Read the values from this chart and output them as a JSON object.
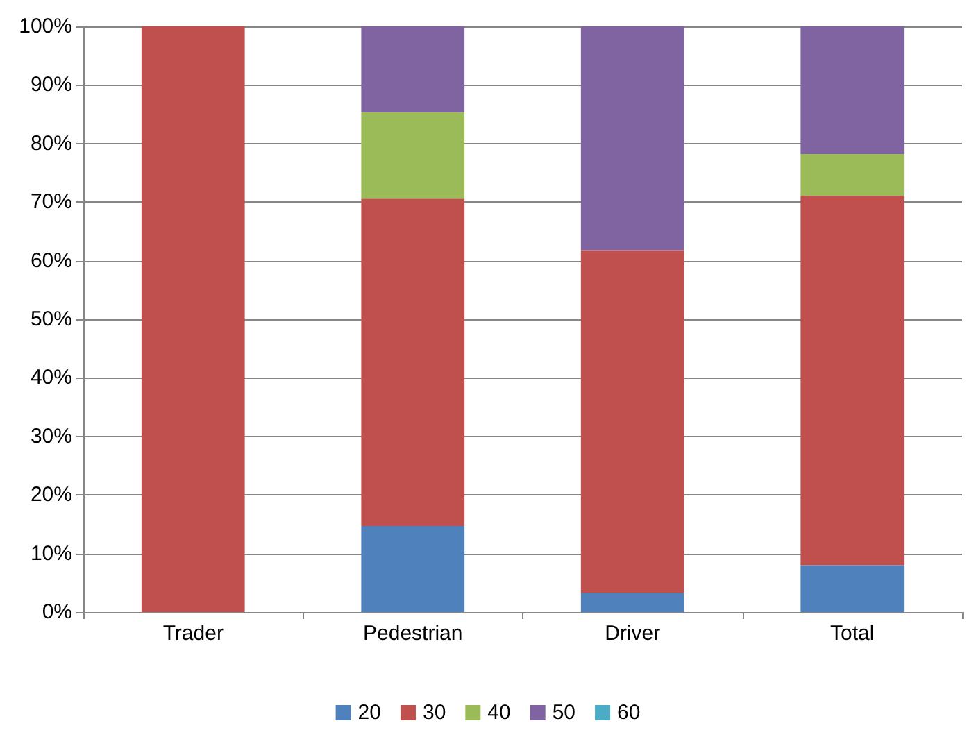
{
  "chart_data": {
    "type": "bar",
    "stacked": true,
    "categories": [
      "Trader",
      "Pedestrian",
      "Driver",
      "Total"
    ],
    "series": [
      {
        "name": "20",
        "color": "#4f81bd",
        "values": [
          0,
          14.7,
          3.3,
          8.0
        ]
      },
      {
        "name": "30",
        "color": "#c0504d",
        "values": [
          100,
          55.9,
          58.5,
          63.1
        ]
      },
      {
        "name": "40",
        "color": "#9bbb59",
        "values": [
          0,
          14.7,
          0,
          7.1
        ]
      },
      {
        "name": "50",
        "color": "#8064a2",
        "values": [
          0,
          14.7,
          38.2,
          21.8
        ]
      },
      {
        "name": "60",
        "color": "#4bacc6",
        "values": [
          0,
          0,
          0,
          0
        ]
      }
    ],
    "ylim": [
      0,
      100
    ],
    "yticks": [
      {
        "value": 0,
        "label": "0%"
      },
      {
        "value": 10,
        "label": "10%"
      },
      {
        "value": 20,
        "label": "20%"
      },
      {
        "value": 30,
        "label": "30%"
      },
      {
        "value": 40,
        "label": "40%"
      },
      {
        "value": 50,
        "label": "50%"
      },
      {
        "value": 60,
        "label": "60%"
      },
      {
        "value": 70,
        "label": "70%"
      },
      {
        "value": 80,
        "label": "80%"
      },
      {
        "value": 90,
        "label": "90%"
      },
      {
        "value": 100,
        "label": "100%"
      }
    ],
    "grid": "y",
    "legend": "bottom"
  }
}
